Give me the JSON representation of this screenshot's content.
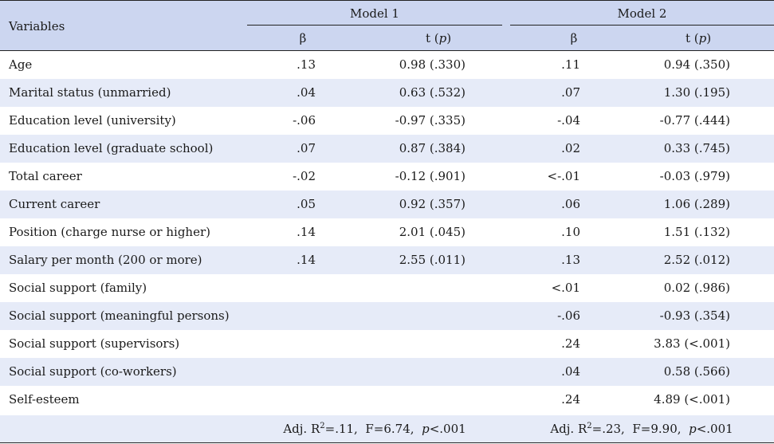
{
  "header": {
    "variables": "Variables",
    "model1": "Model 1",
    "model2": "Model 2",
    "beta": "β",
    "t_label": "t (",
    "p_label": "p",
    "t_close": ")"
  },
  "rows": [
    {
      "label": "Age",
      "b1": ".13",
      "t1": "0.98 (.330)",
      "b2": ".11",
      "t2": "0.94 (.350)"
    },
    {
      "label": "Marital status (unmarried)",
      "b1": ".04",
      "t1": "0.63 (.532)",
      "b2": ".07",
      "t2": "1.30 (.195)"
    },
    {
      "label": "Education level (university)",
      "b1": "-.06",
      "t1": "-0.97 (.335)",
      "b2": "-.04",
      "t2": "-0.77 (.444)"
    },
    {
      "label": "Education level (graduate school)",
      "b1": ".07",
      "t1": "0.87 (.384)",
      "b2": ".02",
      "t2": "0.33 (.745)"
    },
    {
      "label": "Total career",
      "b1": "-.02",
      "t1": "-0.12 (.901)",
      "b2": "<-.01",
      "t2": "-0.03 (.979)"
    },
    {
      "label": "Current career",
      "b1": ".05",
      "t1": "0.92 (.357)",
      "b2": ".06",
      "t2": "1.06 (.289)"
    },
    {
      "label": "Position (charge nurse or higher)",
      "b1": ".14",
      "t1": "2.01 (.045)",
      "b2": ".10",
      "t2": "1.51 (.132)"
    },
    {
      "label": "Salary per month (200 or more)",
      "b1": ".14",
      "t1": "2.55 (.011)",
      "b2": ".13",
      "t2": "2.52 (.012)"
    },
    {
      "label": "Social support (family)",
      "b1": "",
      "t1": "",
      "b2": "<.01",
      "t2": "0.02 (.986)"
    },
    {
      "label": "Social support (meaningful persons)",
      "b1": "",
      "t1": "",
      "b2": "-.06",
      "t2": "-0.93 (.354)"
    },
    {
      "label": "Social support (supervisors)",
      "b1": "",
      "t1": "",
      "b2": ".24",
      "t2": "3.83 (<.001)"
    },
    {
      "label": "Social support (co-workers)",
      "b1": "",
      "t1": "",
      "b2": ".04",
      "t2": "0.58 (.566)"
    },
    {
      "label": "Self-esteem",
      "b1": "",
      "t1": "",
      "b2": ".24",
      "t2": "4.89 (<.001)"
    }
  ],
  "fit": {
    "model1": {
      "adj": "Adj. R",
      "sup": "2",
      "r2": "=.11,",
      "f": "F=6.74,",
      "p_label": "p",
      "p": "<.001"
    },
    "model2": {
      "adj": "Adj. R",
      "sup": "2",
      "r2": "=.23,",
      "f": "F=9.90,",
      "p_label": "p",
      "p": "<.001"
    }
  }
}
